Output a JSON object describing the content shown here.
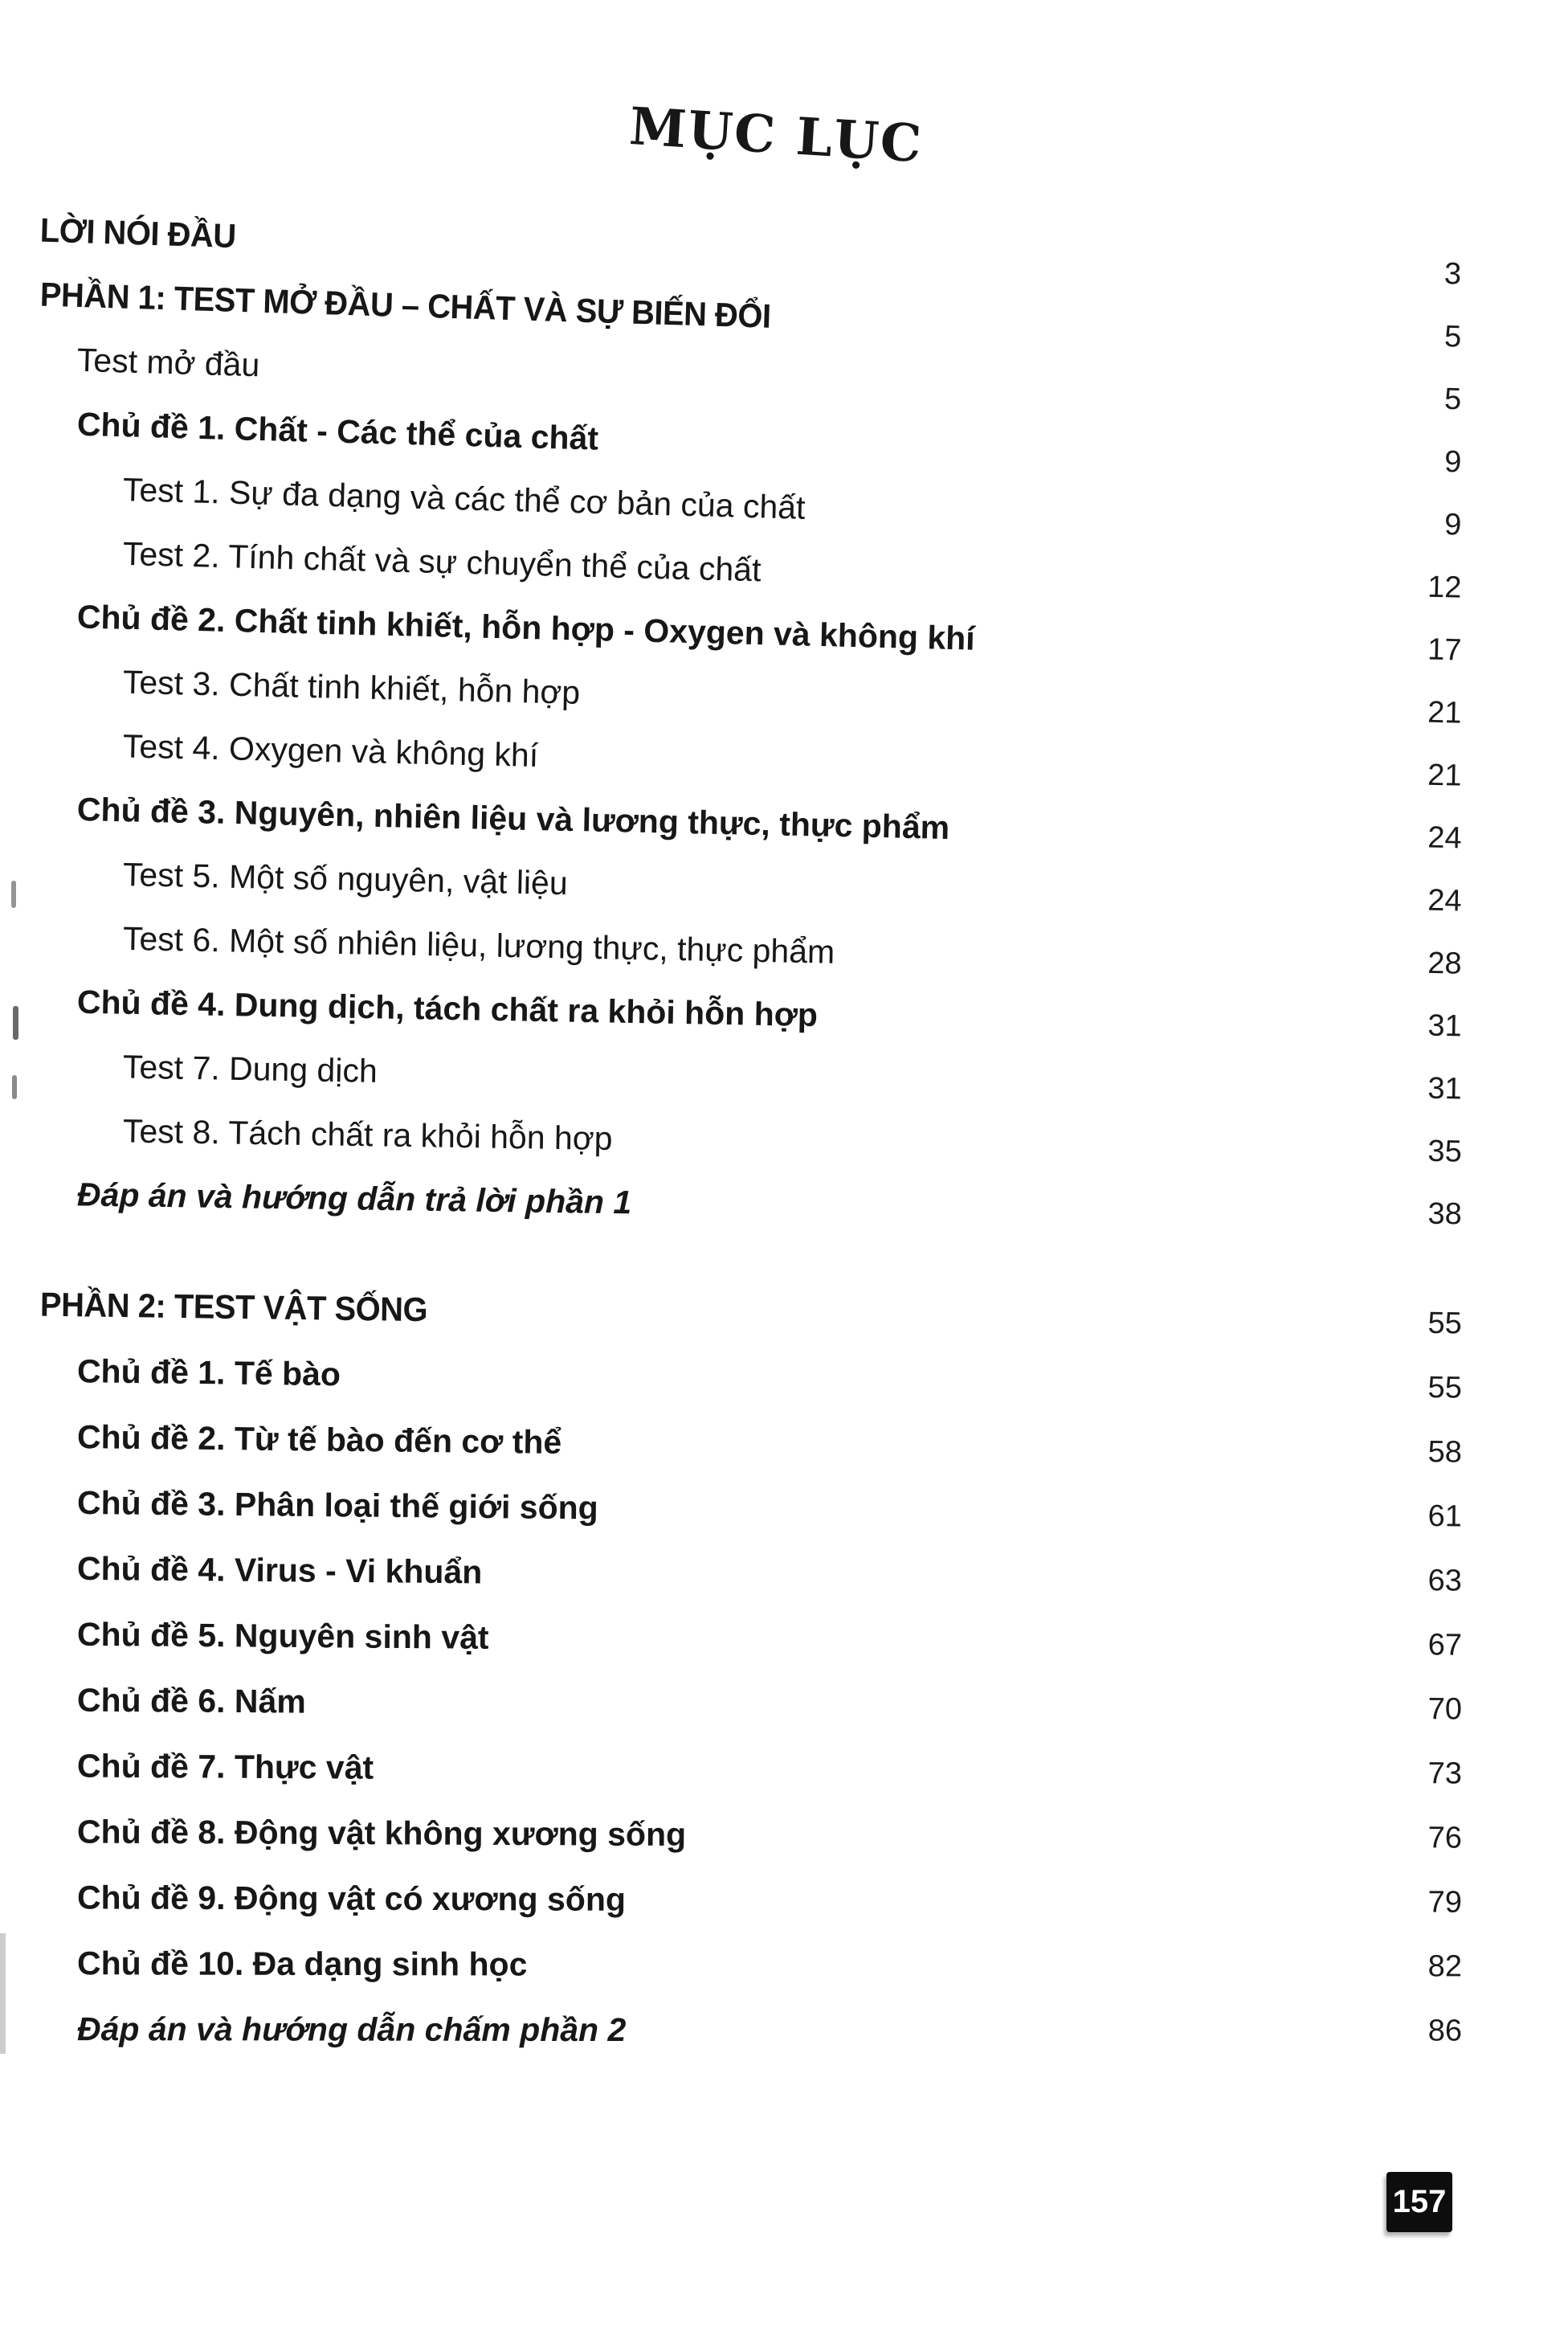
{
  "page": {
    "title": "MỤC LỤC",
    "badge": "157"
  },
  "colors": {
    "paper": "#ffffff",
    "text": "#171717",
    "badge_bg": "#0d0d0d",
    "badge_text": "#ffffff"
  },
  "toc": {
    "sections": [
      {
        "rows": [
          {
            "label": "LỜI NÓI ĐẦU",
            "page": "3",
            "level": 0,
            "style": "bold-caps"
          },
          {
            "label": "PHẦN 1: TEST MỞ ĐẦU – CHẤT VÀ SỰ BIẾN ĐỔI",
            "page": "5",
            "level": 0,
            "style": "part"
          },
          {
            "label": "Test mở đầu",
            "page": "5",
            "level": 1,
            "style": "normal"
          },
          {
            "label": "Chủ đề 1. Chất - Các thể của chất",
            "page": "9",
            "level": 1,
            "style": "topic"
          },
          {
            "label": "Test 1. Sự đa dạng và các thể cơ bản của chất",
            "page": "9",
            "level": 2,
            "style": "normal"
          },
          {
            "label": "Test 2. Tính chất và sự chuyển thể của chất",
            "page": "12",
            "level": 2,
            "style": "normal"
          },
          {
            "label": "Chủ đề 2. Chất tinh khiết, hỗn hợp - Oxygen và không khí",
            "page": "17",
            "level": 1,
            "style": "topic"
          },
          {
            "label": "Test 3. Chất tinh khiết, hỗn hợp",
            "page": "21",
            "level": 2,
            "style": "normal"
          },
          {
            "label": "Test 4. Oxygen và không khí",
            "page": "21",
            "level": 2,
            "style": "normal"
          },
          {
            "label": "Chủ đề 3. Nguyên, nhiên liệu và lương thực, thực phẩm",
            "page": "24",
            "level": 1,
            "style": "topic"
          },
          {
            "label": "Test 5. Một số nguyên, vật liệu",
            "page": "24",
            "level": 2,
            "style": "normal"
          },
          {
            "label": "Test 6. Một số nhiên liệu, lương thực, thực phẩm",
            "page": "28",
            "level": 2,
            "style": "normal"
          },
          {
            "label": "Chủ đề 4. Dung dịch, tách chất ra khỏi hỗn hợp",
            "page": "31",
            "level": 1,
            "style": "topic"
          },
          {
            "label": "Test 7. Dung dịch",
            "page": "31",
            "level": 2,
            "style": "normal"
          },
          {
            "label": "Test 8. Tách chất ra khỏi hỗn hợp",
            "page": "35",
            "level": 2,
            "style": "normal"
          },
          {
            "label": "Đáp án và hướng dẫn trả lời phần 1",
            "page": "38",
            "level": 1,
            "style": "answer"
          }
        ]
      },
      {
        "rows": [
          {
            "label": "PHẦN 2: TEST VẬT SỐNG",
            "page": "55",
            "level": 0,
            "style": "part"
          },
          {
            "label": "Chủ đề 1. Tế bào",
            "page": "55",
            "level": 1,
            "style": "topic"
          },
          {
            "label": "Chủ đề 2. Từ tế bào đến cơ thể",
            "page": "58",
            "level": 1,
            "style": "topic"
          },
          {
            "label": "Chủ đề 3. Phân loại thế giới sống",
            "page": "61",
            "level": 1,
            "style": "topic"
          },
          {
            "label": "Chủ đề 4. Virus - Vi khuẩn",
            "page": "63",
            "level": 1,
            "style": "topic"
          },
          {
            "label": "Chủ đề 5. Nguyên sinh vật",
            "page": "67",
            "level": 1,
            "style": "topic"
          },
          {
            "label": "Chủ đề 6. Nấm",
            "page": "70",
            "level": 1,
            "style": "topic"
          },
          {
            "label": "Chủ đề 7. Thực vật",
            "page": "73",
            "level": 1,
            "style": "topic"
          },
          {
            "label": "Chủ đề 8. Động vật không xương sống",
            "page": "76",
            "level": 1,
            "style": "topic"
          },
          {
            "label": "Chủ đề 9. Động vật có xương sống",
            "page": "79",
            "level": 1,
            "style": "topic"
          },
          {
            "label": "Chủ đề 10. Đa dạng sinh học",
            "page": "82",
            "level": 1,
            "style": "topic"
          },
          {
            "label": "Đáp án và hướng dẫn chấm phần 2",
            "page": "86",
            "level": 1,
            "style": "answer"
          }
        ]
      }
    ]
  }
}
